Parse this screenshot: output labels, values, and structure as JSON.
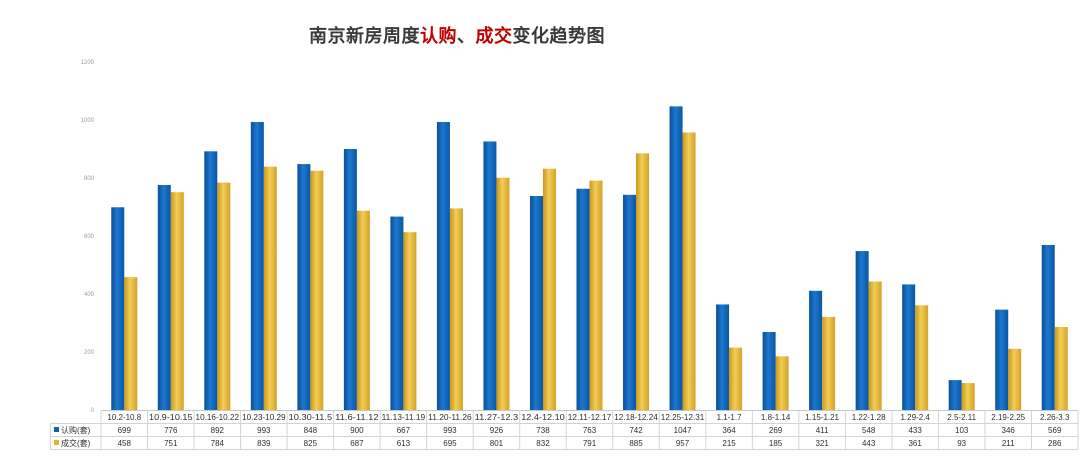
{
  "chart_data": {
    "type": "bar",
    "title_parts": [
      {
        "text": "南京新房周度",
        "color": "#3a3a3a"
      },
      {
        "text": "认购",
        "color": "#c00000"
      },
      {
        "text": "、",
        "color": "#3a3a3a"
      },
      {
        "text": "成交",
        "color": "#c00000"
      },
      {
        "text": "变化趋势图",
        "color": "#3a3a3a"
      }
    ],
    "categories": [
      "10.2-10.8",
      "10.9-10.15",
      "10.16-10.22",
      "10.23-10.29",
      "10.30-11.5",
      "11.6-11.12",
      "11.13-11.19",
      "11.20-11.26",
      "11.27-12.3",
      "12.4-12.10",
      "12.11-12.17",
      "12.18-12.24",
      "12.25-12.31",
      "1.1-1.7",
      "1.8-1.14",
      "1.15-1.21",
      "1.22-1.28",
      "1.29-2.4",
      "2.5-2.11",
      "2.19-2.25",
      "2.26-3.3"
    ],
    "series": [
      {
        "name": "认购(套)",
        "color": "#0d63b8",
        "values": [
          699,
          776,
          892,
          993,
          848,
          900,
          667,
          993,
          926,
          738,
          763,
          742,
          1047,
          364,
          269,
          411,
          548,
          433,
          103,
          346,
          569
        ]
      },
      {
        "name": "成交(套)",
        "color": "#e3b22c",
        "values": [
          458,
          751,
          784,
          839,
          825,
          687,
          613,
          695,
          801,
          832,
          791,
          885,
          957,
          215,
          185,
          321,
          443,
          361,
          93,
          211,
          286
        ]
      }
    ],
    "yticks": [
      0,
      200,
      400,
      600,
      800,
      1000,
      1200
    ],
    "ylim": [
      0,
      1200
    ],
    "grid": false,
    "legend": "data-table-left"
  }
}
